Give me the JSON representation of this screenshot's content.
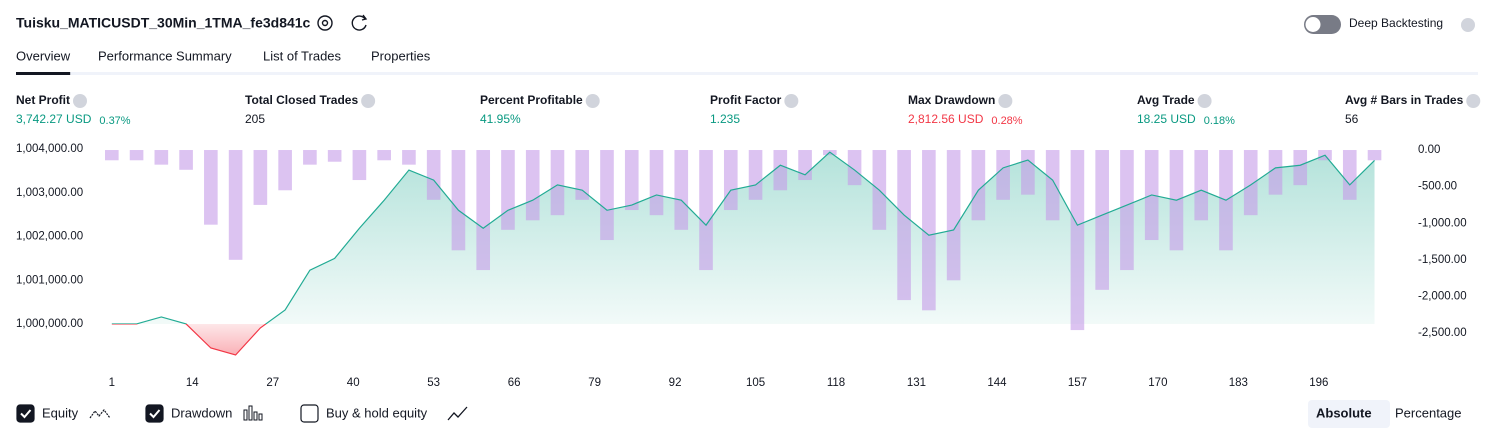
{
  "header": {
    "title": "Tuisku_MATICUSDT_30Min_1TMA_fe3d841c",
    "deep_backtesting": "Deep Backtesting"
  },
  "tabs": [
    "Overview",
    "Performance Summary",
    "List of Trades",
    "Properties"
  ],
  "active_tab": 0,
  "metrics": [
    {
      "label": "Net Profit",
      "value": "3,742.27 USD",
      "percent": "0.37%",
      "color": "#089981"
    },
    {
      "label": "Total Closed Trades",
      "value": "205",
      "color": "#131722"
    },
    {
      "label": "Percent Profitable",
      "value": "41.95%",
      "color": "#089981"
    },
    {
      "label": "Profit Factor",
      "value": "1.235",
      "color": "#089981"
    },
    {
      "label": "Max Drawdown",
      "value": "2,812.56 USD",
      "percent": "0.28%",
      "color": "#f23645"
    },
    {
      "label": "Avg Trade",
      "value": "18.25 USD",
      "percent": "0.18%",
      "color": "#089981"
    },
    {
      "label": "Avg # Bars in Trades",
      "value": "56",
      "color": "#131722"
    }
  ],
  "chart_data": {
    "type": "equity",
    "x": [
      1,
      5,
      9,
      13,
      17,
      21,
      25,
      29,
      33,
      37,
      41,
      45,
      49,
      53,
      57,
      61,
      65,
      69,
      73,
      77,
      81,
      85,
      89,
      93,
      97,
      101,
      105,
      109,
      113,
      117,
      121,
      125,
      129,
      133,
      137,
      141,
      145,
      149,
      153,
      157,
      161,
      165,
      169,
      173,
      177,
      181,
      185,
      189,
      193,
      197,
      201,
      205
    ],
    "series": [
      {
        "name": "Equity",
        "color": "#22ab94",
        "loss_color": "#f23645",
        "visible": true,
        "values": [
          1000000,
          1000000,
          1000160,
          1000000,
          999450,
          999290,
          999910,
          1000320,
          1001230,
          1001500,
          1002190,
          1002830,
          1003520,
          1003290,
          1002600,
          1002190,
          1002600,
          1002830,
          1003180,
          1003060,
          1002600,
          1002720,
          1002950,
          1002830,
          1002260,
          1003060,
          1003180,
          1003630,
          1003410,
          1003930,
          1003520,
          1003060,
          1002490,
          1002030,
          1002150,
          1003060,
          1003570,
          1003750,
          1003290,
          1002260,
          1002490,
          1002720,
          1002950,
          1002830,
          1003060,
          1002830,
          1003180,
          1003570,
          1003630,
          1003860,
          1003180,
          1003740
        ]
      },
      {
        "name": "Drawdown",
        "color": "#c49be8",
        "axis": "y2",
        "visible": true,
        "values": [
          -140,
          -140,
          -200,
          -270,
          -1020,
          -1500,
          -750,
          -550,
          -200,
          -160,
          -410,
          -140,
          -200,
          -680,
          -1370,
          -1640,
          -1090,
          -960,
          -890,
          -680,
          -1230,
          -820,
          -890,
          -1090,
          -1640,
          -820,
          -680,
          -550,
          -410,
          -70,
          -480,
          -1090,
          -2050,
          -2190,
          -1780,
          -960,
          -680,
          -610,
          -960,
          -2460,
          -1910,
          -1640,
          -1230,
          -1370,
          -960,
          -1370,
          -890,
          -610,
          -480,
          -140,
          -680,
          -140
        ]
      }
    ],
    "baseline": 1000000,
    "xlim": [
      -0.1,
      209.6
    ],
    "xticks": [
      1,
      14,
      27,
      40,
      53,
      66,
      79,
      92,
      105,
      118,
      131,
      144,
      157,
      170,
      183,
      196
    ],
    "ylim": [
      999130,
      1004070
    ],
    "yticks": [
      {
        "value": 1000000,
        "label": "1,000,000.00"
      },
      {
        "value": 1001000,
        "label": "1,001,000.00"
      },
      {
        "value": 1002000,
        "label": "1,002,000.00"
      },
      {
        "value": 1003000,
        "label": "1,003,000.00"
      },
      {
        "value": 1004000,
        "label": "1,004,000.00"
      }
    ],
    "y2lim": [
      -2896,
      55
    ],
    "y2ticks": [
      {
        "value": 0,
        "label": "0.00"
      },
      {
        "value": -500,
        "label": "-500.00"
      },
      {
        "value": -1000,
        "label": "-1,000.00"
      },
      {
        "value": -1500,
        "label": "-1,500.00"
      },
      {
        "value": -2000,
        "label": "-2,000.00"
      },
      {
        "value": -2500,
        "label": "-2,500.00"
      }
    ]
  },
  "controls": {
    "buy_hold_label": "Buy & hold equity",
    "buy_hold_checked": false,
    "modes": [
      "Absolute",
      "Percentage"
    ],
    "active_mode": 0
  }
}
